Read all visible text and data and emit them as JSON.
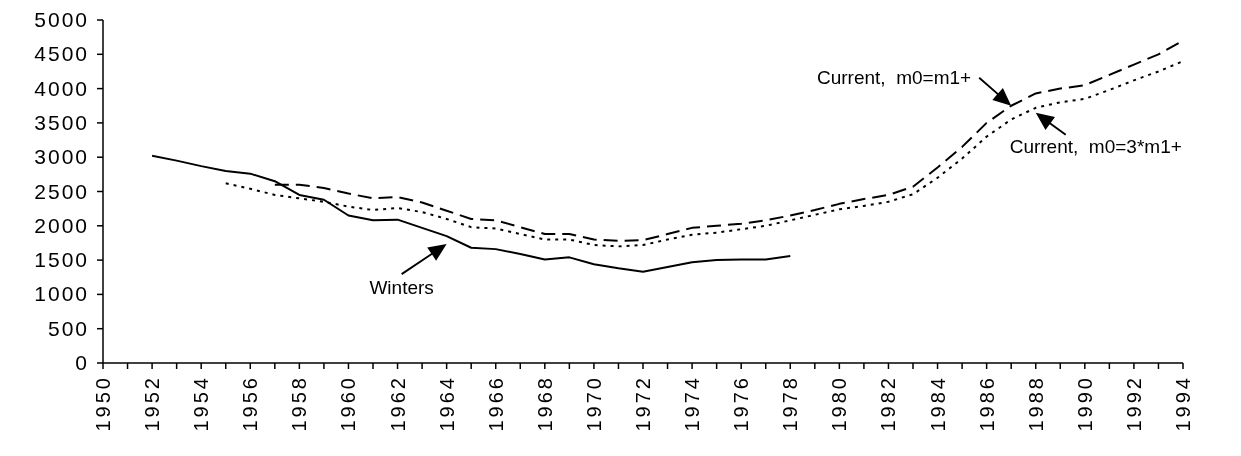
{
  "chart_data": {
    "type": "line",
    "xlim": [
      1950,
      1994
    ],
    "ylim": [
      0,
      5000
    ],
    "yticks": [
      0,
      500,
      1000,
      1500,
      2000,
      2500,
      3000,
      3500,
      4000,
      4500,
      5000
    ],
    "xticks": [
      1950,
      {
        "value": 1951,
        "label": null
      },
      1952,
      {
        "value": 1953,
        "label": null
      },
      1954,
      {
        "value": 1955,
        "label": null
      },
      1956,
      {
        "value": 1957,
        "label": null
      },
      1958,
      {
        "value": 1959,
        "label": null
      },
      1960,
      {
        "value": 1961,
        "label": null
      },
      1962,
      {
        "value": 1963,
        "label": null
      },
      1964,
      {
        "value": 1965,
        "label": null
      },
      1966,
      {
        "value": 1967,
        "label": null
      },
      1968,
      {
        "value": 1969,
        "label": null
      },
      1970,
      {
        "value": 1971,
        "label": null
      },
      1972,
      {
        "value": 1973,
        "label": null
      },
      1974,
      {
        "value": 1975,
        "label": null
      },
      1976,
      {
        "value": 1977,
        "label": null
      },
      1978,
      {
        "value": 1979,
        "label": null
      },
      1980,
      {
        "value": 1981,
        "label": null
      },
      1982,
      {
        "value": 1983,
        "label": null
      },
      1984,
      {
        "value": 1985,
        "label": null
      },
      1986,
      {
        "value": 1987,
        "label": null
      },
      1988,
      {
        "value": 1989,
        "label": null
      },
      1990,
      {
        "value": 1991,
        "label": null
      },
      1992,
      {
        "value": 1993,
        "label": null
      },
      1994
    ],
    "annotations": [
      {
        "text": "Winters",
        "x": 1964,
        "y": 1850
      },
      {
        "text": "Current,  m0=m1+",
        "x": 1987,
        "y": 3750
      },
      {
        "text": "Current,  m0=3*m1+",
        "x": 1988,
        "y": 3720
      }
    ],
    "grid": false,
    "legend": false,
    "marker": "none",
    "series": [
      {
        "color": "#000000",
        "line_style": "solid",
        "x": [
          1952,
          1953,
          1954,
          1955,
          1956,
          1957,
          1958,
          1959,
          1960,
          1961,
          1962,
          1963,
          1964,
          1965,
          1966,
          1967,
          1968,
          1969,
          1970,
          1971,
          1972,
          1973,
          1974,
          1975,
          1976,
          1977,
          1978
        ],
        "values": [
          3020,
          2950,
          2870,
          2800,
          2760,
          2650,
          2450,
          2380,
          2150,
          2080,
          2090,
          1970,
          1850,
          1680,
          1660,
          1590,
          1510,
          1540,
          1440,
          1380,
          1330,
          1400,
          1470,
          1500,
          1510,
          1510,
          1560
        ]
      },
      {
        "color": "#000000",
        "line_style": "dashed",
        "x": [
          1957,
          1958,
          1959,
          1960,
          1961,
          1962,
          1963,
          1964,
          1965,
          1966,
          1967,
          1968,
          1969,
          1970,
          1971,
          1972,
          1973,
          1974,
          1975,
          1976,
          1977,
          1978,
          1979,
          1980,
          1981,
          1982,
          1983,
          1984,
          1985,
          1986,
          1987,
          1988,
          1989,
          1990,
          1991,
          1992,
          1993,
          1994
        ],
        "values": [
          2600,
          2600,
          2550,
          2470,
          2400,
          2420,
          2340,
          2220,
          2100,
          2080,
          1980,
          1880,
          1880,
          1800,
          1780,
          1790,
          1880,
          1970,
          2000,
          2030,
          2080,
          2150,
          2230,
          2320,
          2390,
          2450,
          2570,
          2850,
          3150,
          3500,
          3750,
          3930,
          4000,
          4050,
          4200,
          4350,
          4500,
          4700
        ]
      },
      {
        "color": "#000000",
        "line_style": "dotted",
        "x": [
          1955,
          1956,
          1957,
          1958,
          1959,
          1960,
          1961,
          1962,
          1963,
          1964,
          1965,
          1966,
          1967,
          1968,
          1969,
          1970,
          1971,
          1972,
          1973,
          1974,
          1975,
          1976,
          1977,
          1978,
          1979,
          1980,
          1981,
          1982,
          1983,
          1984,
          1985,
          1986,
          1987,
          1988,
          1989,
          1990,
          1991,
          1992,
          1993,
          1994
        ],
        "values": [
          2620,
          2540,
          2450,
          2400,
          2350,
          2280,
          2230,
          2260,
          2200,
          2100,
          1980,
          1960,
          1880,
          1800,
          1800,
          1720,
          1700,
          1720,
          1800,
          1870,
          1900,
          1950,
          2000,
          2080,
          2160,
          2240,
          2290,
          2350,
          2460,
          2700,
          2980,
          3300,
          3550,
          3720,
          3800,
          3850,
          3980,
          4120,
          4250,
          4400
        ]
      }
    ]
  }
}
